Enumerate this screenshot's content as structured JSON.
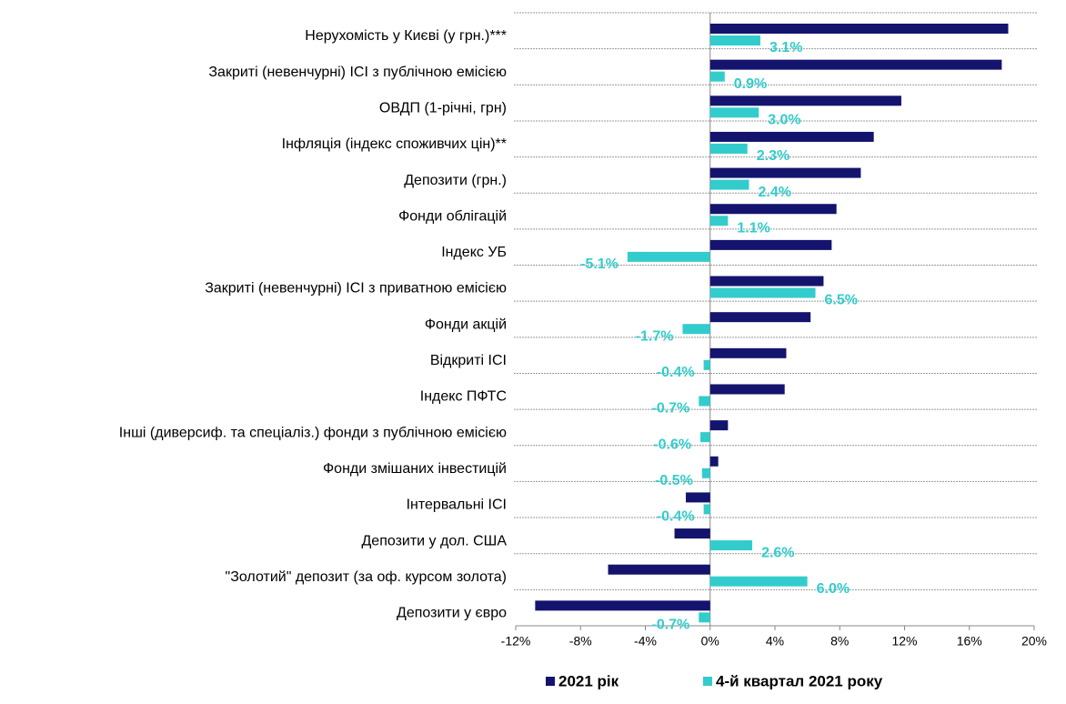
{
  "chart_data": {
    "type": "bar",
    "orientation": "horizontal",
    "categories": [
      "Нерухомість у Києві (у грн.)***",
      "Закриті (невенчурні) ІСІ з публічною емісією",
      "ОВДП (1-річні, грн)",
      "Інфляція  (індекс споживчих цін)**",
      "Депозити (грн.)",
      "Фонди облігацій",
      "Індекс УБ",
      "Закриті (невенчурні) ІСІ з приватною емісією",
      "Фонди акцій",
      "Відкриті ІСІ",
      "Індекс ПФТС",
      "Інші (диверсиф. та спеціаліз.) фонди з публічною емісією",
      "Фонди змішаних інвестицій",
      "Інтервальні ІСІ",
      "Депозити у дол. США",
      "\"Золотий\" депозит (за оф. курсом золота)",
      "Депозити у євро"
    ],
    "series": [
      {
        "name": "2021 рік",
        "color": "#14146e",
        "values": [
          18.4,
          18.0,
          11.8,
          10.1,
          9.3,
          7.8,
          7.5,
          7.0,
          6.2,
          4.7,
          4.6,
          1.1,
          0.5,
          -1.5,
          -2.2,
          -6.3,
          -10.8
        ]
      },
      {
        "name": "4-й квартал 2021 року",
        "color": "#33cccc",
        "values": [
          3.1,
          0.9,
          3.0,
          2.3,
          2.4,
          1.1,
          -5.1,
          6.5,
          -1.7,
          -0.4,
          -0.7,
          -0.6,
          -0.5,
          -0.4,
          2.6,
          6.0,
          -0.7
        ],
        "value_labels": [
          "3.1%",
          "0.9%",
          "3.0%",
          "2.3%",
          "2.4%",
          "1.1%",
          "-5.1%",
          "6.5%",
          "-1.7%",
          "-0.4%",
          "-0.7%",
          "-0.6%",
          "-0.5%",
          "-0.4%",
          "2.6%",
          "6.0%",
          "-0.7%"
        ]
      }
    ],
    "xlim": [
      -12,
      20
    ],
    "xticks": [
      {
        "value": -12,
        "label": "-12%"
      },
      {
        "value": -8,
        "label": "-8%"
      },
      {
        "value": -4,
        "label": "-4%"
      },
      {
        "value": 0,
        "label": "0%"
      },
      {
        "value": 4,
        "label": "4%"
      },
      {
        "value": 8,
        "label": "8%"
      },
      {
        "value": 12,
        "label": "12%"
      },
      {
        "value": 16,
        "label": "16%"
      },
      {
        "value": 20,
        "label": "20%"
      }
    ],
    "legend": "bottom"
  }
}
